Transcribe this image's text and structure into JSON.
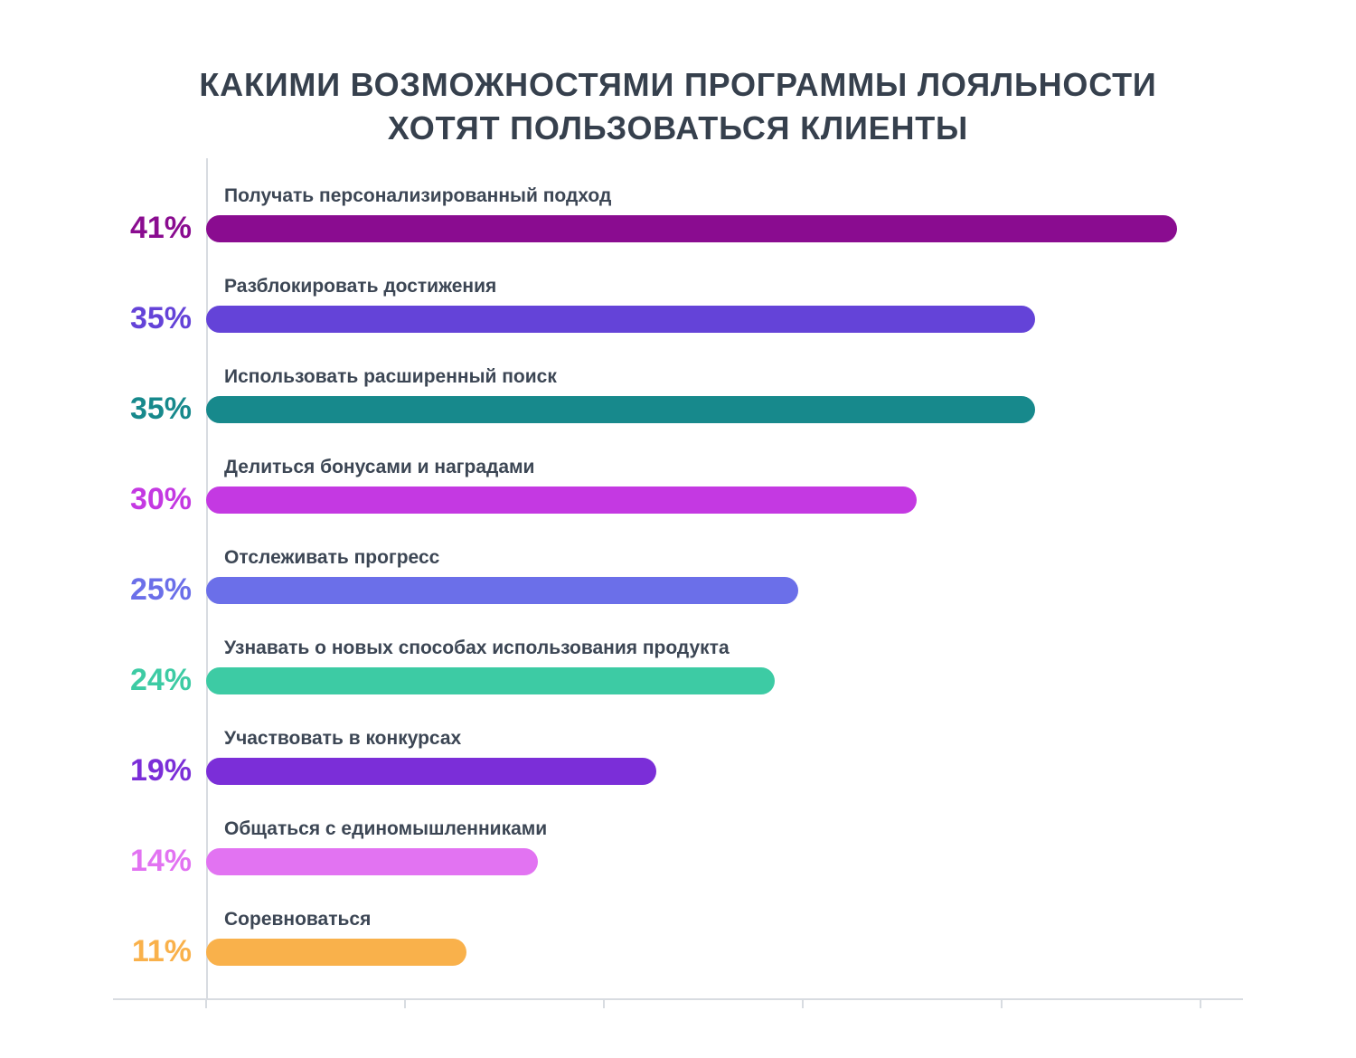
{
  "title": {
    "line1": "КАКИМИ ВОЗМОЖНОСТЯМИ ПРОГРАММЫ ЛОЯЛЬНОСТИ",
    "line2": "ХОТЯТ ПОЛЬЗОВАТЬСЯ КЛИЕНТЫ"
  },
  "chart_data": {
    "type": "bar",
    "orientation": "horizontal",
    "title": "КАКИМИ ВОЗМОЖНОСТЯМИ ПРОГРАММЫ ЛОЯЛЬНОСТИ ХОТЯТ ПОЛЬЗОВАТЬСЯ КЛИЕНТЫ",
    "categories": [
      "Получать персонализированный подход",
      "Разблокировать достижения",
      "Использовать расширенный поиск",
      "Делиться бонусами и наградами",
      "Отслеживать прогресс",
      "Узнавать о новых способах использования продукта",
      "Участвовать в конкурсах",
      "Общаться с единомышленниками",
      "Соревноваться"
    ],
    "values": [
      41,
      35,
      35,
      30,
      25,
      24,
      19,
      14,
      11
    ],
    "value_labels": [
      "41%",
      "35%",
      "35%",
      "30%",
      "25%",
      "24%",
      "19%",
      "14%",
      "11%"
    ],
    "colors": [
      "#8a0c90",
      "#6443d8",
      "#17898c",
      "#c439e2",
      "#6b6fe9",
      "#3dcba4",
      "#7b2ed8",
      "#e273f2",
      "#f9b14b"
    ],
    "axis_color": "#d8dce1",
    "label_color": "#3c4654",
    "title_color": "#36404d",
    "xlim": [
      0,
      44
    ],
    "x_tick_count": 6,
    "x_tick_labels": [],
    "grid": false,
    "legend": "none",
    "value_label_position": "left-of-axis",
    "category_label_position": "above-bar"
  }
}
